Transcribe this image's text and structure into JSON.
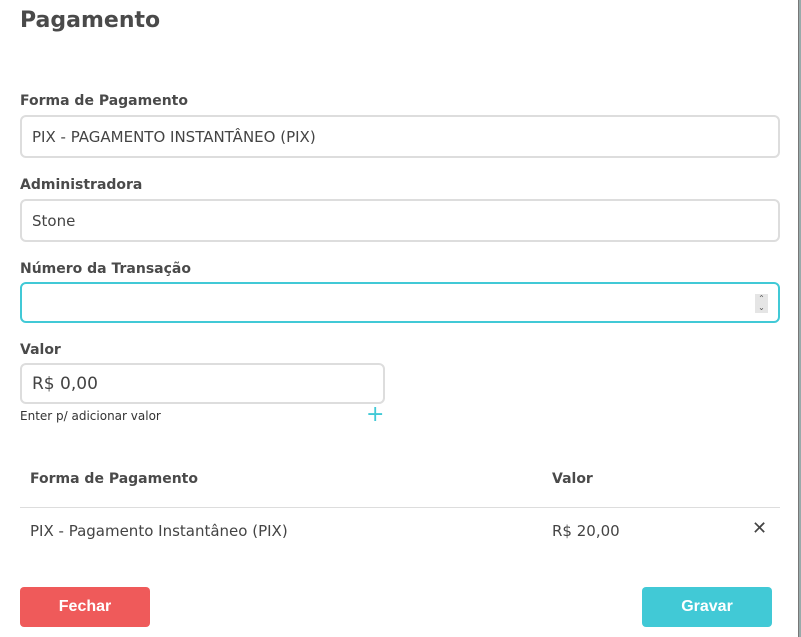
{
  "title": "Pagamento",
  "fields": {
    "forma_label": "Forma de Pagamento",
    "forma_value": "PIX - PAGAMENTO INSTANTÂNEO (PIX)",
    "admin_label": "Administradora",
    "admin_value": "Stone",
    "transacao_label": "Número da Transação",
    "transacao_value": "",
    "valor_label": "Valor",
    "valor_value": "R$ 0,00",
    "valor_hint": "Enter p/ adicionar valor"
  },
  "table": {
    "columns": [
      "Forma de Pagamento",
      "Valor"
    ],
    "rows": [
      {
        "forma": "PIX - Pagamento Instantâneo (PIX)",
        "valor": "R$ 20,00"
      }
    ]
  },
  "buttons": {
    "fechar": "Fechar",
    "gravar": "Gravar"
  },
  "colors": {
    "accent": "#41c9d6",
    "danger": "#ef5a5a"
  }
}
